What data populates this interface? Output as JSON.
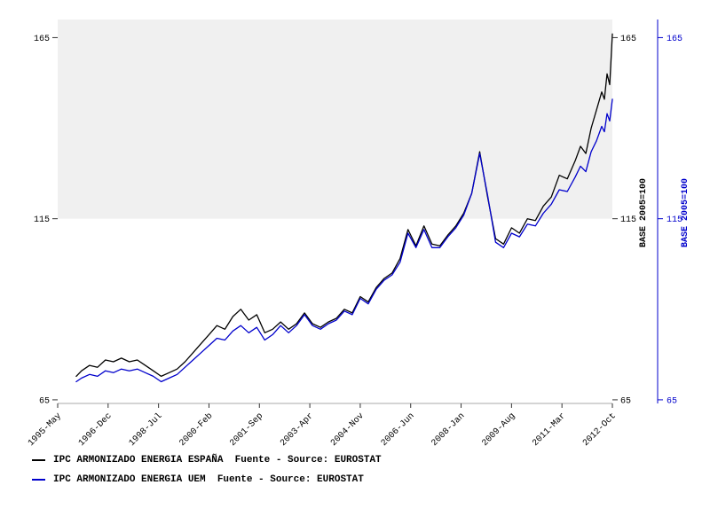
{
  "page": {
    "background": "#ffffff"
  },
  "chart_data": {
    "type": "line",
    "title": "",
    "x_tick_labels": [
      "1995-May",
      "1996-Dec",
      "1998-Jul",
      "2000-Feb",
      "2001-Sep",
      "2003-Apr",
      "2004-Nov",
      "2006-Jun",
      "2008-Jan",
      "2009-Aug",
      "2011-Mar",
      "2012-Oct"
    ],
    "x_tick_months": [
      0,
      19,
      38,
      57,
      76,
      95,
      114,
      133,
      152,
      171,
      190,
      209
    ],
    "x_axis_month_range": [
      0,
      209
    ],
    "y_ticks": [
      65,
      115,
      165
    ],
    "ylim": [
      64,
      170
    ],
    "grid": false,
    "legend_position": "bottom-left",
    "shaded_band": {
      "from": 115,
      "to": 170,
      "color": "#f0f0f0"
    },
    "right_axis_label": "BASE 2005=100",
    "x_months": [
      7,
      9,
      12,
      15,
      18,
      21,
      24,
      27,
      30,
      33,
      36,
      39,
      42,
      45,
      48,
      51,
      54,
      57,
      60,
      63,
      66,
      69,
      72,
      75,
      78,
      81,
      84,
      87,
      90,
      93,
      96,
      99,
      102,
      105,
      108,
      111,
      114,
      117,
      120,
      123,
      126,
      129,
      132,
      135,
      138,
      141,
      144,
      147,
      150,
      153,
      156,
      159,
      162,
      165,
      168,
      171,
      174,
      177,
      180,
      183,
      186,
      189,
      192,
      195,
      197,
      199,
      201,
      203,
      205,
      206,
      207,
      208,
      209
    ],
    "series": [
      {
        "name": "IPC ARMONIZADO ENERGIA ESPAÑA",
        "legend_label": "IPC ARMONIZADO ENERGIA ESPAÑA  Fuente - Source: EUROSTAT",
        "color": "#000000",
        "values": [
          71.5,
          73.0,
          74.5,
          74.0,
          76.0,
          75.5,
          76.5,
          75.5,
          76.0,
          74.5,
          73.0,
          71.5,
          72.5,
          73.5,
          75.5,
          78.0,
          80.5,
          83.0,
          85.5,
          84.5,
          88.0,
          90.0,
          87.0,
          88.5,
          83.5,
          84.5,
          86.5,
          84.5,
          86.0,
          89.0,
          86.0,
          85.0,
          86.5,
          87.5,
          90.0,
          89.0,
          93.5,
          92.0,
          96.0,
          98.5,
          100.0,
          104.0,
          112.0,
          107.5,
          113.0,
          108.0,
          107.5,
          110.5,
          113.0,
          116.5,
          122.0,
          133.5,
          121.0,
          109.5,
          108.0,
          112.5,
          111.0,
          115.0,
          114.5,
          118.5,
          121.0,
          127.0,
          126.0,
          131.0,
          135.0,
          133.0,
          140.0,
          145.0,
          150.0,
          148.0,
          155.0,
          152.0,
          166.0
        ]
      },
      {
        "name": "IPC ARMONIZADO ENERGIA UEM",
        "legend_label": "IPC ARMONIZADO ENERGIA UEM  Fuente - Source: EUROSTAT",
        "color": "#0000cc",
        "values": [
          70.0,
          71.0,
          72.0,
          71.5,
          73.0,
          72.5,
          73.5,
          73.0,
          73.5,
          72.5,
          71.5,
          70.0,
          71.0,
          72.0,
          74.0,
          76.0,
          78.0,
          80.0,
          82.0,
          81.5,
          84.0,
          85.5,
          83.5,
          85.0,
          81.5,
          83.0,
          85.5,
          83.5,
          85.5,
          88.5,
          85.5,
          84.5,
          86.0,
          87.0,
          89.5,
          88.5,
          93.0,
          91.5,
          95.5,
          98.0,
          99.5,
          103.0,
          111.0,
          107.0,
          112.0,
          107.0,
          107.0,
          110.0,
          112.5,
          116.0,
          122.0,
          133.0,
          121.5,
          108.5,
          107.0,
          111.0,
          110.0,
          113.5,
          113.0,
          116.5,
          119.0,
          123.0,
          122.5,
          126.5,
          129.5,
          128.0,
          133.5,
          136.5,
          140.5,
          139.0,
          144.0,
          142.0,
          148.0
        ]
      }
    ]
  }
}
